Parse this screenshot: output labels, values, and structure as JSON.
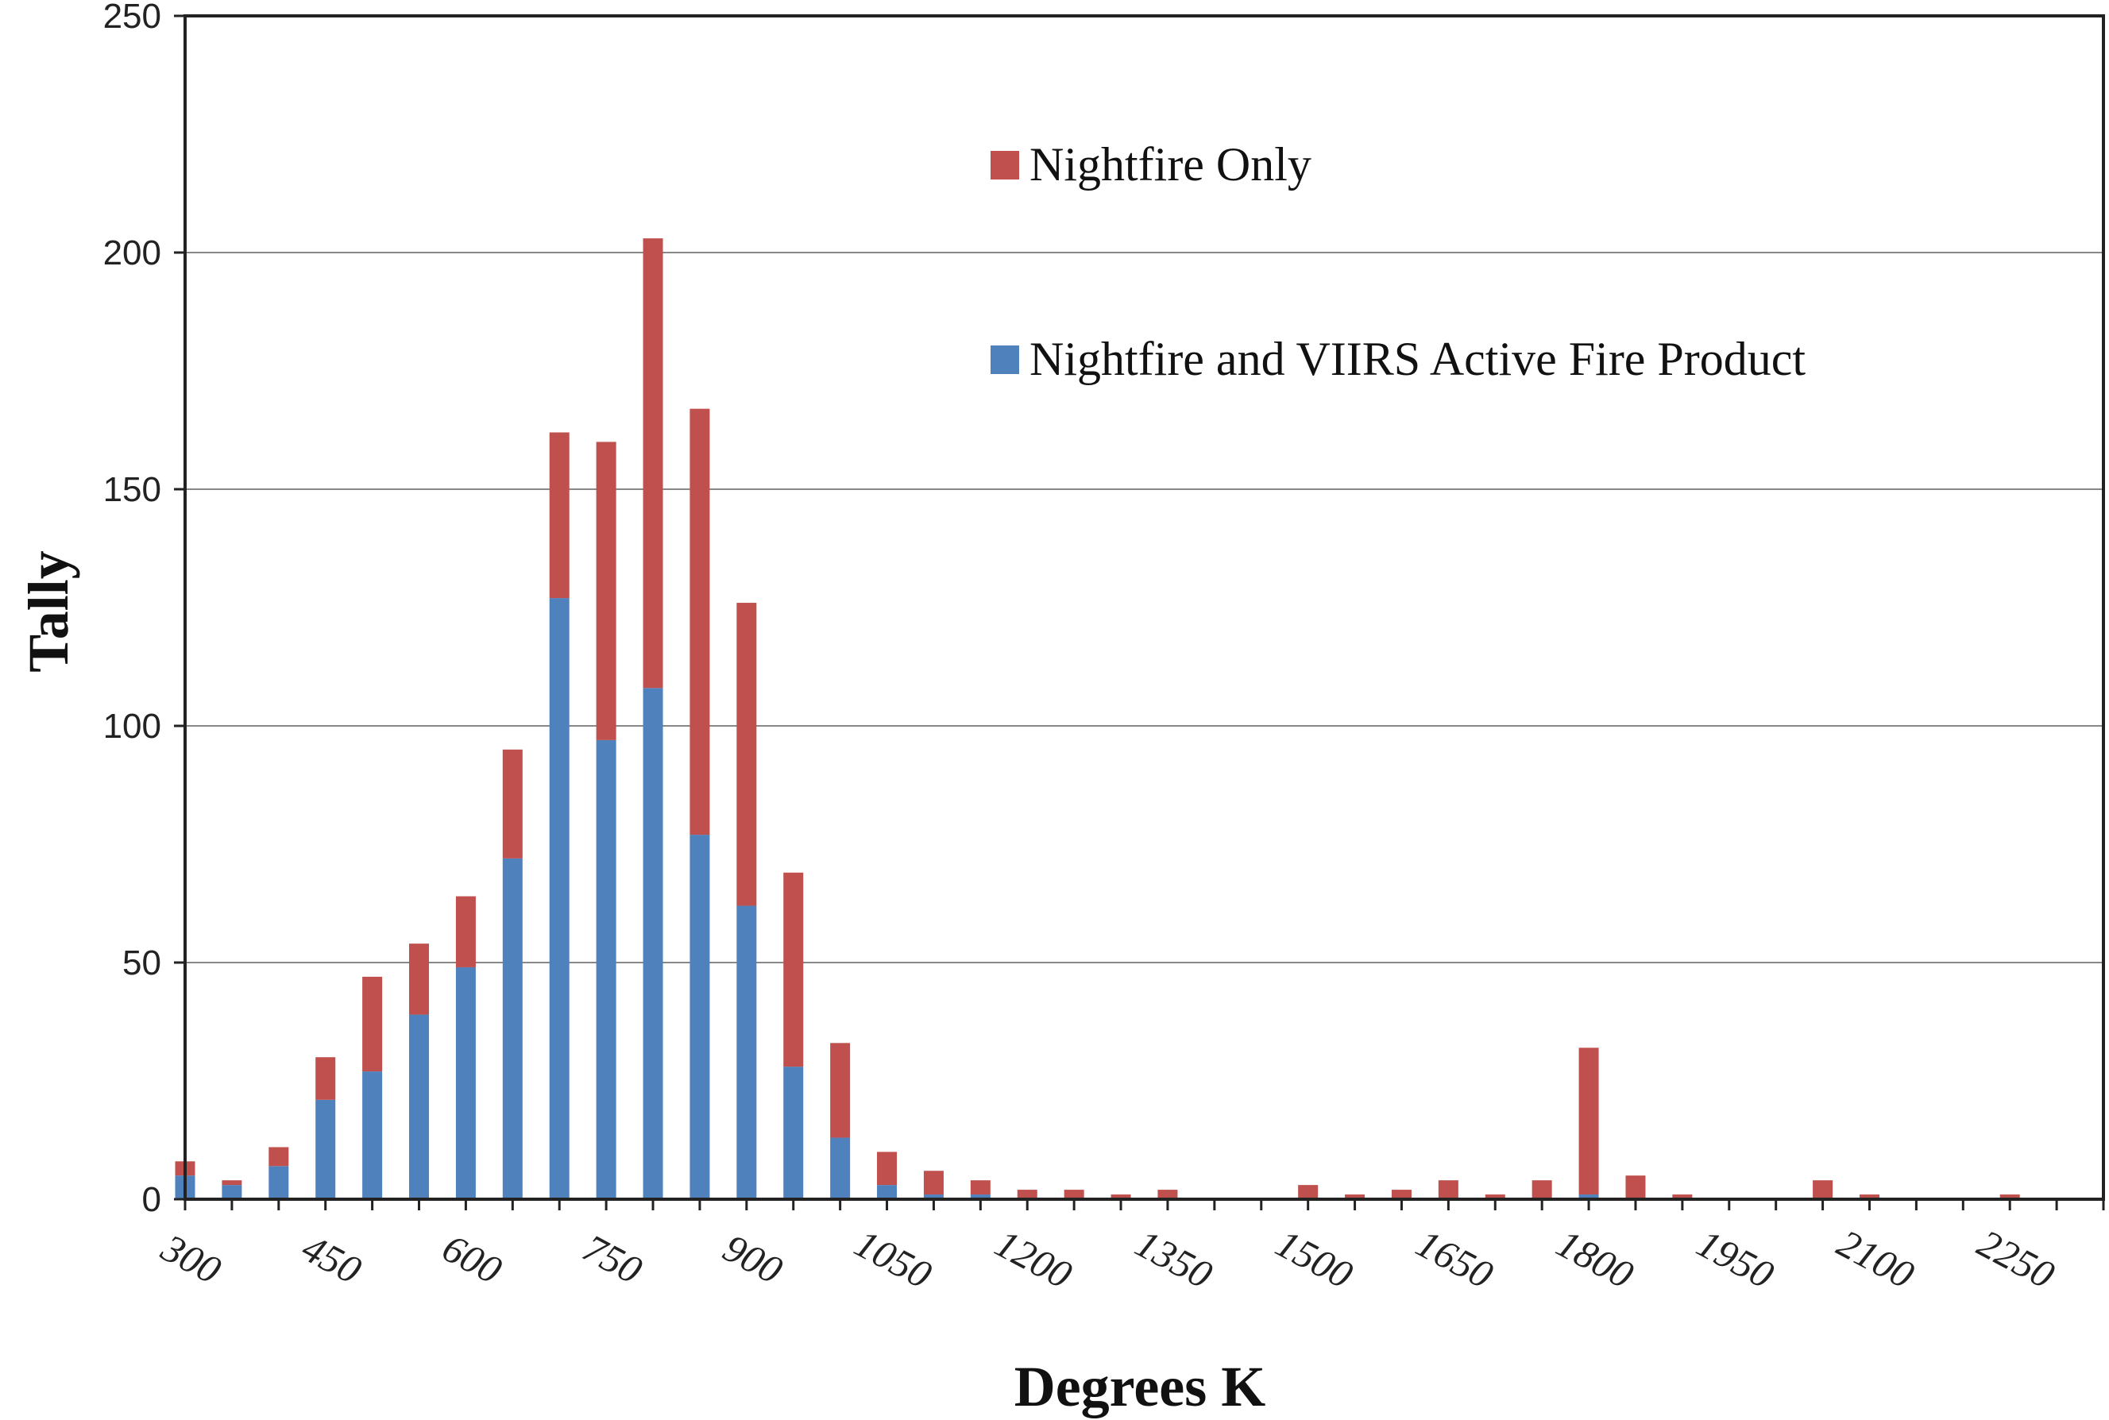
{
  "chart_data": {
    "type": "bar",
    "stacked": true,
    "xlabel": "Degrees K",
    "ylabel": "Tally",
    "ylim": [
      0,
      250
    ],
    "yticks": [
      0,
      50,
      100,
      150,
      200,
      250
    ],
    "xtick_labels": [
      "300",
      "450",
      "600",
      "750",
      "900",
      "1050",
      "1200",
      "1350",
      "1500",
      "1650",
      "1800",
      "1950",
      "2100",
      "2250"
    ],
    "categories": [
      300,
      350,
      400,
      450,
      500,
      550,
      600,
      650,
      700,
      750,
      800,
      850,
      900,
      950,
      1000,
      1050,
      1100,
      1150,
      1200,
      1250,
      1300,
      1350,
      1400,
      1450,
      1500,
      1550,
      1600,
      1650,
      1700,
      1750,
      1800,
      1850,
      1900,
      1950,
      2000,
      2050,
      2100,
      2150,
      2200,
      2250,
      2300
    ],
    "series": [
      {
        "name": "Nightfire and VIIRS Active Fire Product",
        "color": "#4F81BD",
        "values": [
          5,
          3,
          7,
          21,
          27,
          39,
          49,
          72,
          127,
          97,
          108,
          77,
          62,
          28,
          13,
          3,
          1,
          1,
          0,
          0,
          0,
          0,
          0,
          0,
          0,
          0,
          0,
          0,
          0,
          0,
          1,
          0,
          0,
          0,
          0,
          0,
          0,
          0,
          0,
          0,
          0
        ]
      },
      {
        "name": "Nightfire Only",
        "color": "#C0504D",
        "values": [
          3,
          1,
          4,
          9,
          20,
          15,
          15,
          23,
          35,
          63,
          95,
          90,
          64,
          41,
          20,
          7,
          5,
          3,
          2,
          2,
          1,
          2,
          0,
          0,
          3,
          1,
          2,
          4,
          1,
          4,
          31,
          5,
          1,
          0,
          0,
          4,
          1,
          0,
          0,
          1,
          0
        ]
      }
    ],
    "legend": {
      "position": "upper-right-inside",
      "order": [
        "Nightfire Only",
        "Nightfire and VIIRS Active Fire Product"
      ]
    },
    "grid": "horizontal"
  }
}
